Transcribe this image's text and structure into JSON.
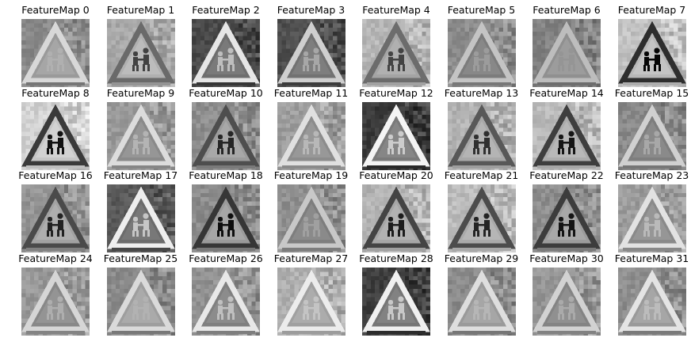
{
  "figure": {
    "panels": [
      {
        "title": "FeatureMap 0",
        "tone": "mid",
        "bg": "#8a8a8a",
        "edge": "#d8d8d8",
        "inner": "#9a9a9a"
      },
      {
        "title": "FeatureMap 1",
        "tone": "light",
        "bg": "#a8a8a8",
        "edge": "#6a6a6a",
        "inner": "#b0b0b0"
      },
      {
        "title": "FeatureMap 2",
        "tone": "dark",
        "bg": "#4a4a4a",
        "edge": "#e6e6e6",
        "inner": "#6e6e6e"
      },
      {
        "title": "FeatureMap 3",
        "tone": "dark",
        "bg": "#505050",
        "edge": "#cfcfcf",
        "inner": "#727272"
      },
      {
        "title": "FeatureMap 4",
        "tone": "light",
        "bg": "#b6b6b6",
        "edge": "#6c6c6c",
        "inner": "#a4a4a4"
      },
      {
        "title": "FeatureMap 5",
        "tone": "mid",
        "bg": "#8c8c8c",
        "edge": "#c4c4c4",
        "inner": "#7c7c7c"
      },
      {
        "title": "FeatureMap 6",
        "tone": "mid",
        "bg": "#828282",
        "edge": "#bdbdbd",
        "inner": "#909090"
      },
      {
        "title": "FeatureMap 7",
        "tone": "light",
        "bg": "#c2c2c2",
        "edge": "#2e2e2e",
        "inner": "#b8b8b8"
      },
      {
        "title": "FeatureMap 8",
        "tone": "light",
        "bg": "#d2d2d2",
        "edge": "#3a3a3a",
        "inner": "#c6c6c6"
      },
      {
        "title": "FeatureMap 9",
        "tone": "mid",
        "bg": "#9a9a9a",
        "edge": "#dcdcdc",
        "inner": "#8a8a8a"
      },
      {
        "title": "FeatureMap 10",
        "tone": "mid",
        "bg": "#8e8e8e",
        "edge": "#4e4e4e",
        "inner": "#9c9c9c"
      },
      {
        "title": "FeatureMap 11",
        "tone": "mid",
        "bg": "#9e9e9e",
        "edge": "#e0e0e0",
        "inner": "#8c8c8c"
      },
      {
        "title": "FeatureMap 12",
        "tone": "dark",
        "bg": "#3c3c3c",
        "edge": "#f4f4f4",
        "inner": "#7a7a7a"
      },
      {
        "title": "FeatureMap 13",
        "tone": "light",
        "bg": "#b2b2b2",
        "edge": "#585858",
        "inner": "#a8a8a8"
      },
      {
        "title": "FeatureMap 14",
        "tone": "light",
        "bg": "#bababa",
        "edge": "#3e3e3e",
        "inner": "#acacac"
      },
      {
        "title": "FeatureMap 15",
        "tone": "mid",
        "bg": "#8a8a8a",
        "edge": "#d0d0d0",
        "inner": "#7e7e7e"
      },
      {
        "title": "FeatureMap 16",
        "tone": "mid",
        "bg": "#949494",
        "edge": "#4a4a4a",
        "inner": "#a2a2a2"
      },
      {
        "title": "FeatureMap 17",
        "tone": "dark",
        "bg": "#5a5a5a",
        "edge": "#eeeeee",
        "inner": "#6c6c6c"
      },
      {
        "title": "FeatureMap 18",
        "tone": "mid",
        "bg": "#8c8c8c",
        "edge": "#363636",
        "inner": "#9a9a9a"
      },
      {
        "title": "FeatureMap 19",
        "tone": "mid",
        "bg": "#909090",
        "edge": "#c8c8c8",
        "inner": "#7e7e7e"
      },
      {
        "title": "FeatureMap 20",
        "tone": "light",
        "bg": "#b4b4b4",
        "edge": "#444444",
        "inner": "#a6a6a6"
      },
      {
        "title": "FeatureMap 21",
        "tone": "light",
        "bg": "#bcbcbc",
        "edge": "#4c4c4c",
        "inner": "#aaaaaa"
      },
      {
        "title": "FeatureMap 22",
        "tone": "mid",
        "bg": "#8e8e8e",
        "edge": "#3c3c3c",
        "inner": "#9c9c9c"
      },
      {
        "title": "FeatureMap 23",
        "tone": "mid",
        "bg": "#9c9c9c",
        "edge": "#e2e2e2",
        "inner": "#8a8a8a"
      },
      {
        "title": "FeatureMap 24",
        "tone": "mid",
        "bg": "#989898",
        "edge": "#d6d6d6",
        "inner": "#888888"
      },
      {
        "title": "FeatureMap 25",
        "tone": "mid",
        "bg": "#8c8c8c",
        "edge": "#dadada",
        "inner": "#9e9e9e"
      },
      {
        "title": "FeatureMap 26",
        "tone": "mid",
        "bg": "#929292",
        "edge": "#e8e8e8",
        "inner": "#808080"
      },
      {
        "title": "FeatureMap 27",
        "tone": "light",
        "bg": "#b0b0b0",
        "edge": "#ececec",
        "inner": "#a0a0a0"
      },
      {
        "title": "FeatureMap 28",
        "tone": "dark",
        "bg": "#404040",
        "edge": "#f0f0f0",
        "inner": "#767676"
      },
      {
        "title": "FeatureMap 29",
        "tone": "mid",
        "bg": "#8a8a8a",
        "edge": "#dedede",
        "inner": "#9a9a9a"
      },
      {
        "title": "FeatureMap 30",
        "tone": "mid",
        "bg": "#969696",
        "edge": "#d2d2d2",
        "inner": "#848484"
      },
      {
        "title": "FeatureMap 31",
        "tone": "mid",
        "bg": "#8e8e8e",
        "edge": "#e4e4e4",
        "inner": "#9a9a9a"
      }
    ],
    "grid": {
      "columns": 8,
      "rows": 4
    }
  }
}
